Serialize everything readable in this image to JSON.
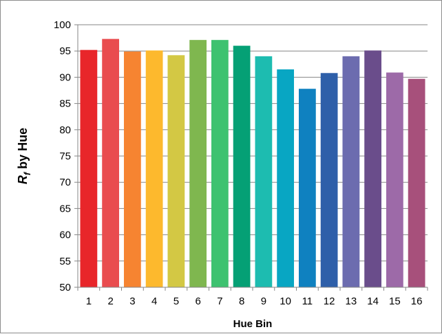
{
  "chart_data": {
    "type": "bar",
    "title": "",
    "xlabel": "Hue Bin",
    "ylabel": {
      "main": "R",
      "sub": "f",
      "rest": " by Hue"
    },
    "categories": [
      "1",
      "2",
      "3",
      "4",
      "5",
      "6",
      "7",
      "8",
      "9",
      "10",
      "11",
      "12",
      "13",
      "14",
      "15",
      "16"
    ],
    "values": [
      95.2,
      97.3,
      94.9,
      95.1,
      94.2,
      97.1,
      97.1,
      96.0,
      94.0,
      91.5,
      87.8,
      90.8,
      94.0,
      95.1,
      90.9,
      89.7
    ],
    "colors": [
      "#e8262a",
      "#e94c4f",
      "#f68431",
      "#fdb92d",
      "#d3c844",
      "#7fb74f",
      "#3ec270",
      "#05a075",
      "#1dbcb0",
      "#08a6c3",
      "#0f81c0",
      "#2e5fa9",
      "#6c6caf",
      "#6a4d8b",
      "#9d6aa8",
      "#a7507b"
    ],
    "ylim": [
      50,
      100
    ],
    "yticks": [
      50,
      55,
      60,
      65,
      70,
      75,
      80,
      85,
      90,
      95,
      100
    ],
    "grid": true,
    "legend": "none"
  }
}
